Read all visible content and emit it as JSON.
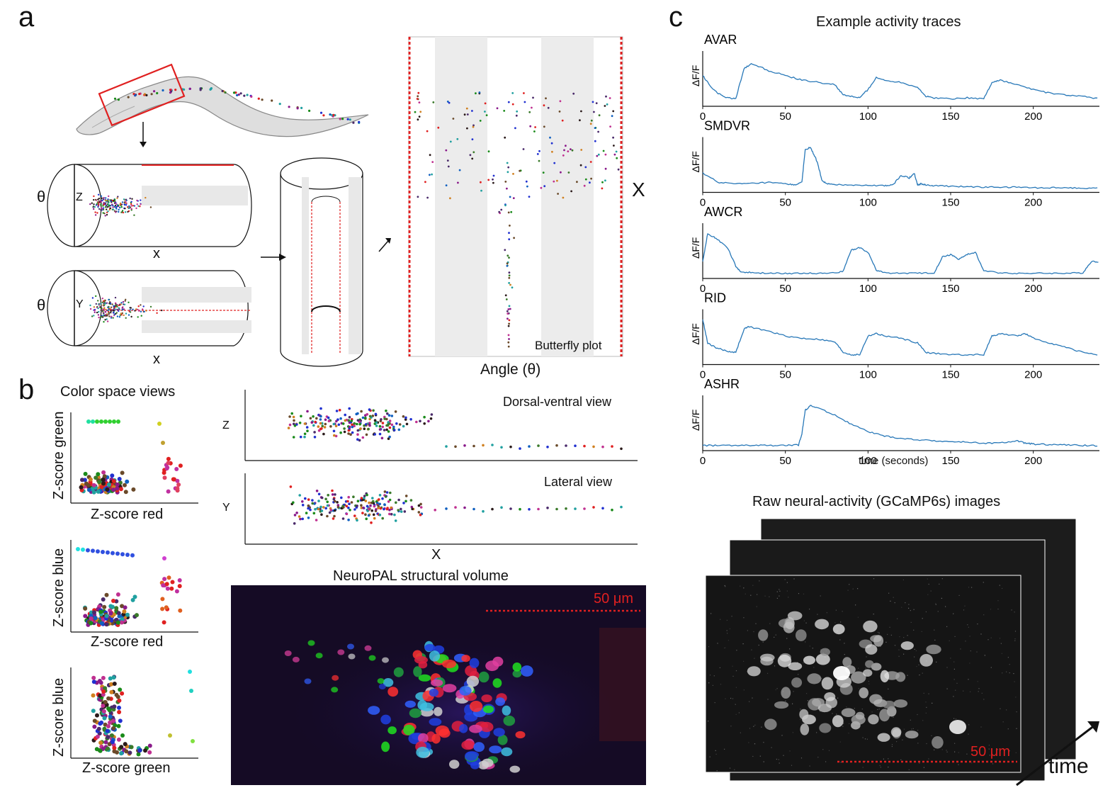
{
  "panels": {
    "a": "a",
    "b": "b",
    "c": "c"
  },
  "panel_a": {
    "theta": "θ",
    "z_label": "Z",
    "y_label": "Y",
    "x_label": "x",
    "big_x": "X",
    "butterfly_plot": "Butterfly plot",
    "angle_label": "Angle (θ)"
  },
  "panel_b": {
    "color_space_title": "Color space views",
    "scatter1": {
      "ylabel": "Z-score green",
      "xlabel": "Z-score red"
    },
    "scatter2": {
      "ylabel": "Z-score blue",
      "xlabel": "Z-score red"
    },
    "scatter3": {
      "ylabel": "Z-score blue",
      "xlabel": "Z-score green"
    },
    "dv_view": "Dorsal-ventral view",
    "lateral_view": "Lateral view",
    "z_axis": "Z",
    "y_axis": "Y",
    "x_axis": "X",
    "neuropal_title": "NeuroPAL structural volume",
    "scale_bar": "50 μm"
  },
  "panel_c": {
    "title": "Example activity traces",
    "ylabel": "ΔF/F",
    "xlabel": "time (seconds)",
    "ticks": [
      "0",
      "50",
      "100",
      "150",
      "200"
    ],
    "traces": [
      {
        "name": "AVAR",
        "color": "#2878b8"
      },
      {
        "name": "SMDVR",
        "color": "#2878b8"
      },
      {
        "name": "AWCR",
        "color": "#2878b8"
      },
      {
        "name": "RID",
        "color": "#2878b8"
      },
      {
        "name": "ASHR",
        "color": "#2878b8"
      }
    ],
    "raw_title": "Raw neural-activity (GCaMP6s) images",
    "scale_bar": "50 μm",
    "time_label": "time"
  },
  "chart_data": [
    {
      "type": "line",
      "name": "AVAR",
      "xlim": [
        0,
        240
      ],
      "x": [
        0,
        5,
        10,
        15,
        20,
        25,
        30,
        40,
        50,
        60,
        70,
        80,
        85,
        90,
        95,
        100,
        105,
        110,
        120,
        130,
        135,
        140,
        150,
        160,
        170,
        175,
        180,
        190,
        200,
        210,
        220,
        230,
        240
      ],
      "values": [
        0.6,
        0.35,
        0.2,
        0.12,
        0.1,
        0.75,
        0.85,
        0.7,
        0.6,
        0.5,
        0.45,
        0.4,
        0.18,
        0.15,
        0.12,
        0.3,
        0.55,
        0.5,
        0.45,
        0.35,
        0.15,
        0.12,
        0.1,
        0.12,
        0.1,
        0.45,
        0.5,
        0.4,
        0.3,
        0.22,
        0.18,
        0.15,
        0.1
      ]
    },
    {
      "type": "line",
      "name": "SMDVR",
      "xlim": [
        0,
        240
      ],
      "x": [
        0,
        10,
        20,
        30,
        40,
        50,
        55,
        60,
        62,
        65,
        68,
        70,
        72,
        75,
        80,
        90,
        100,
        110,
        115,
        120,
        125,
        128,
        130,
        132,
        135,
        140,
        150,
        160,
        170,
        180,
        190,
        200,
        210,
        220,
        230,
        240
      ],
      "values": [
        0.35,
        0.15,
        0.12,
        0.13,
        0.15,
        0.12,
        0.1,
        0.15,
        0.85,
        0.9,
        0.7,
        0.5,
        0.2,
        0.12,
        0.1,
        0.1,
        0.09,
        0.08,
        0.1,
        0.3,
        0.25,
        0.35,
        0.1,
        0.12,
        0.1,
        0.08,
        0.07,
        0.06,
        0.05,
        0.05,
        0.05,
        0.04,
        0.04,
        0.04,
        0.03,
        0.03
      ]
    },
    {
      "type": "line",
      "name": "AWCR",
      "xlim": [
        0,
        240
      ],
      "x": [
        0,
        3,
        8,
        15,
        20,
        23,
        30,
        40,
        50,
        60,
        70,
        80,
        85,
        90,
        95,
        100,
        105,
        110,
        120,
        130,
        140,
        145,
        150,
        155,
        160,
        165,
        170,
        180,
        190,
        200,
        210,
        220,
        230,
        235,
        240
      ],
      "values": [
        0.3,
        0.9,
        0.8,
        0.6,
        0.2,
        0.08,
        0.06,
        0.05,
        0.05,
        0.05,
        0.05,
        0.06,
        0.1,
        0.55,
        0.6,
        0.5,
        0.12,
        0.06,
        0.05,
        0.05,
        0.06,
        0.4,
        0.45,
        0.35,
        0.45,
        0.5,
        0.1,
        0.06,
        0.05,
        0.05,
        0.05,
        0.05,
        0.06,
        0.3,
        0.3
      ]
    },
    {
      "type": "line",
      "name": "RID",
      "xlim": [
        0,
        240
      ],
      "x": [
        0,
        3,
        8,
        15,
        20,
        25,
        28,
        40,
        50,
        60,
        70,
        80,
        85,
        90,
        95,
        100,
        105,
        110,
        120,
        130,
        135,
        140,
        150,
        160,
        170,
        175,
        180,
        190,
        195,
        200,
        210,
        220,
        230,
        240
      ],
      "values": [
        0.9,
        0.4,
        0.3,
        0.22,
        0.2,
        0.7,
        0.75,
        0.65,
        0.55,
        0.5,
        0.48,
        0.42,
        0.2,
        0.15,
        0.15,
        0.55,
        0.6,
        0.55,
        0.5,
        0.4,
        0.2,
        0.18,
        0.15,
        0.15,
        0.15,
        0.55,
        0.6,
        0.55,
        0.6,
        0.5,
        0.4,
        0.3,
        0.2,
        0.15
      ]
    },
    {
      "type": "line",
      "name": "ASHR",
      "xlim": [
        0,
        240
      ],
      "x": [
        0,
        10,
        20,
        30,
        40,
        50,
        58,
        60,
        62,
        65,
        70,
        80,
        90,
        100,
        110,
        120,
        130,
        140,
        150,
        160,
        170,
        180,
        190,
        195,
        200,
        210,
        220,
        230,
        240
      ],
      "values": [
        0.05,
        0.05,
        0.05,
        0.05,
        0.05,
        0.05,
        0.06,
        0.3,
        0.8,
        0.9,
        0.85,
        0.7,
        0.5,
        0.35,
        0.25,
        0.2,
        0.17,
        0.15,
        0.13,
        0.12,
        0.1,
        0.1,
        0.15,
        0.1,
        0.08,
        0.07,
        0.06,
        0.05,
        0.05
      ]
    }
  ]
}
